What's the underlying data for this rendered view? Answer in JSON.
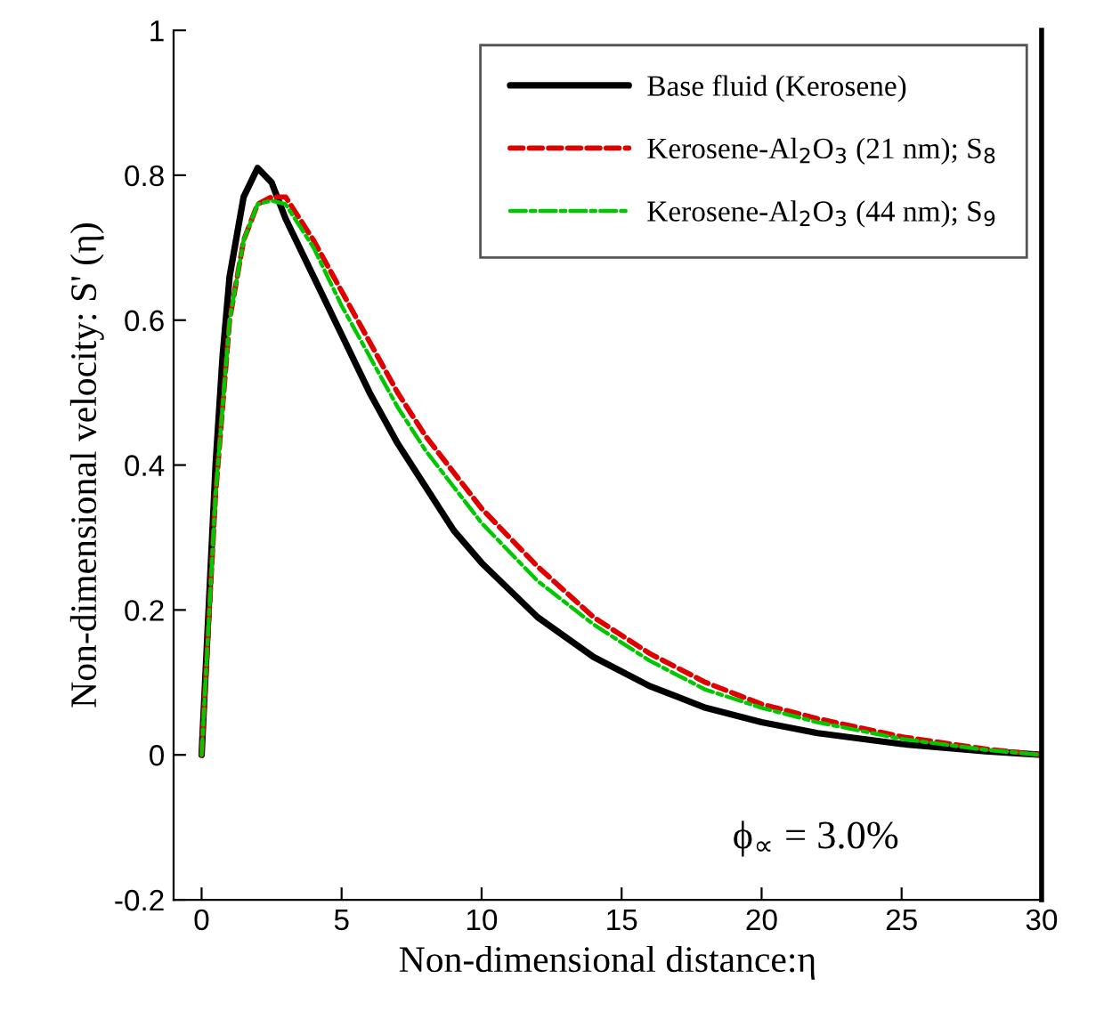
{
  "chart_data": {
    "type": "line",
    "xlabel": "Non-dimensional distance:η",
    "ylabel": "Non-dimensional velocity: S' (η)",
    "xlim": [
      -1,
      30
    ],
    "ylim": [
      -0.2,
      1
    ],
    "xticks": [
      0,
      5,
      10,
      15,
      20,
      25,
      30
    ],
    "yticks": [
      {
        "value": -0.2,
        "label": "-0.2"
      },
      0,
      0.2,
      0.4,
      0.6,
      0.8,
      1
    ],
    "grid": false,
    "legend": "top right",
    "annotations": [
      "ϕ$_{∝}$ = 3.0%"
    ],
    "series": [
      {
        "name": "Base fluid (Kerosene)",
        "color": "#000000",
        "line_style": "solid",
        "x": [
          0,
          0.25,
          0.5,
          0.75,
          1,
          1.5,
          2,
          2.5,
          3,
          4,
          5,
          6,
          7,
          8,
          9,
          10,
          12,
          14,
          16,
          18,
          20,
          22,
          25,
          28,
          30
        ],
        "values": [
          0,
          0.2,
          0.4,
          0.55,
          0.66,
          0.77,
          0.81,
          0.79,
          0.74,
          0.66,
          0.58,
          0.5,
          0.43,
          0.37,
          0.31,
          0.265,
          0.19,
          0.135,
          0.095,
          0.065,
          0.045,
          0.03,
          0.015,
          0.005,
          0
        ]
      },
      {
        "name": "Kerosene-Al$_{2}$O$_{3}$ (21 nm); S$_{8}$",
        "color": "#e00000",
        "line_style": "dashed",
        "x": [
          0,
          0.5,
          1,
          1.5,
          2,
          2.5,
          3,
          4,
          5,
          6,
          7,
          8,
          9,
          10,
          12,
          14,
          16,
          18,
          20,
          22,
          25,
          28,
          30
        ],
        "values": [
          0,
          0.36,
          0.6,
          0.71,
          0.76,
          0.77,
          0.77,
          0.71,
          0.64,
          0.57,
          0.5,
          0.44,
          0.39,
          0.34,
          0.26,
          0.19,
          0.14,
          0.1,
          0.07,
          0.05,
          0.025,
          0.008,
          0
        ]
      },
      {
        "name": "Kerosene-Al$_{2}$O$_{3}$ (44 nm); S$_{9}$",
        "color": "#00c800",
        "line_style": "dashdot",
        "x": [
          0,
          0.5,
          1,
          1.5,
          2,
          2.5,
          3,
          4,
          5,
          6,
          7,
          8,
          9,
          10,
          12,
          14,
          16,
          18,
          20,
          22,
          25,
          28,
          30
        ],
        "values": [
          0,
          0.36,
          0.6,
          0.71,
          0.76,
          0.765,
          0.76,
          0.7,
          0.62,
          0.55,
          0.48,
          0.42,
          0.37,
          0.32,
          0.24,
          0.18,
          0.13,
          0.09,
          0.065,
          0.045,
          0.022,
          0.007,
          0
        ]
      }
    ]
  }
}
